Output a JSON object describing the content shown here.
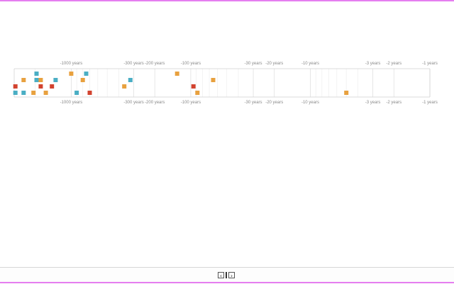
{
  "colors": {
    "accent_border": "#e57ef0",
    "gridline": "#dcdcdc",
    "axis": "#cfcfcf",
    "label": "#8a8a8a",
    "series_orange": "#e8a13f",
    "series_teal": "#4aaec4",
    "series_red": "#d2432f"
  },
  "nav": {
    "prev_icon": "chevron-left-icon",
    "next_icon": "chevron-right-icon",
    "prev_glyph": "‹",
    "next_glyph": "›"
  },
  "chart_data": {
    "type": "scatter",
    "x_scale": "log-reversed",
    "x_unit": "years",
    "xlim": [
      -3000,
      -1
    ],
    "ticks": [
      {
        "value": -1000,
        "label": "-1000 years"
      },
      {
        "value": -300,
        "label": "-300 years"
      },
      {
        "value": -200,
        "label": "-200 years"
      },
      {
        "value": -100,
        "label": "-100 years"
      },
      {
        "value": -30,
        "label": "-30 years"
      },
      {
        "value": -20,
        "label": "-20 years"
      },
      {
        "value": -10,
        "label": "-10 years"
      },
      {
        "value": -3,
        "label": "-3 years"
      },
      {
        "value": -2,
        "label": "-2 years"
      },
      {
        "value": -1,
        "label": "-1 years"
      }
    ],
    "minor_gridlines": [
      -2000,
      -900,
      -800,
      -700,
      -600,
      -500,
      -400,
      -90,
      -80,
      -70,
      -60,
      -50,
      -40,
      -9,
      -8,
      -7,
      -6,
      -5,
      -4
    ],
    "rows": 5,
    "points": [
      {
        "x": -2930,
        "row": 3,
        "color": "red"
      },
      {
        "x": -2930,
        "row": 4,
        "color": "teal"
      },
      {
        "x": -2500,
        "row": 2,
        "color": "orange"
      },
      {
        "x": -2500,
        "row": 4,
        "color": "teal"
      },
      {
        "x": -2070,
        "row": 4,
        "color": "orange"
      },
      {
        "x": -1950,
        "row": 1,
        "color": "teal"
      },
      {
        "x": -1950,
        "row": 2,
        "color": "teal"
      },
      {
        "x": -1800,
        "row": 2,
        "color": "orange"
      },
      {
        "x": -1800,
        "row": 3,
        "color": "red"
      },
      {
        "x": -1630,
        "row": 4,
        "color": "orange"
      },
      {
        "x": -1450,
        "row": 3,
        "color": "red"
      },
      {
        "x": -1350,
        "row": 2,
        "color": "teal"
      },
      {
        "x": -1000,
        "row": 1,
        "color": "orange"
      },
      {
        "x": -900,
        "row": 4,
        "color": "teal"
      },
      {
        "x": -800,
        "row": 2,
        "color": "orange"
      },
      {
        "x": -750,
        "row": 1,
        "color": "teal"
      },
      {
        "x": -700,
        "row": 4,
        "color": "red"
      },
      {
        "x": -360,
        "row": 3,
        "color": "orange"
      },
      {
        "x": -320,
        "row": 2,
        "color": "teal"
      },
      {
        "x": -130,
        "row": 1,
        "color": "orange"
      },
      {
        "x": -95,
        "row": 3,
        "color": "red"
      },
      {
        "x": -88,
        "row": 4,
        "color": "orange"
      },
      {
        "x": -65,
        "row": 2,
        "color": "orange"
      },
      {
        "x": -5,
        "row": 4,
        "color": "orange"
      }
    ]
  }
}
